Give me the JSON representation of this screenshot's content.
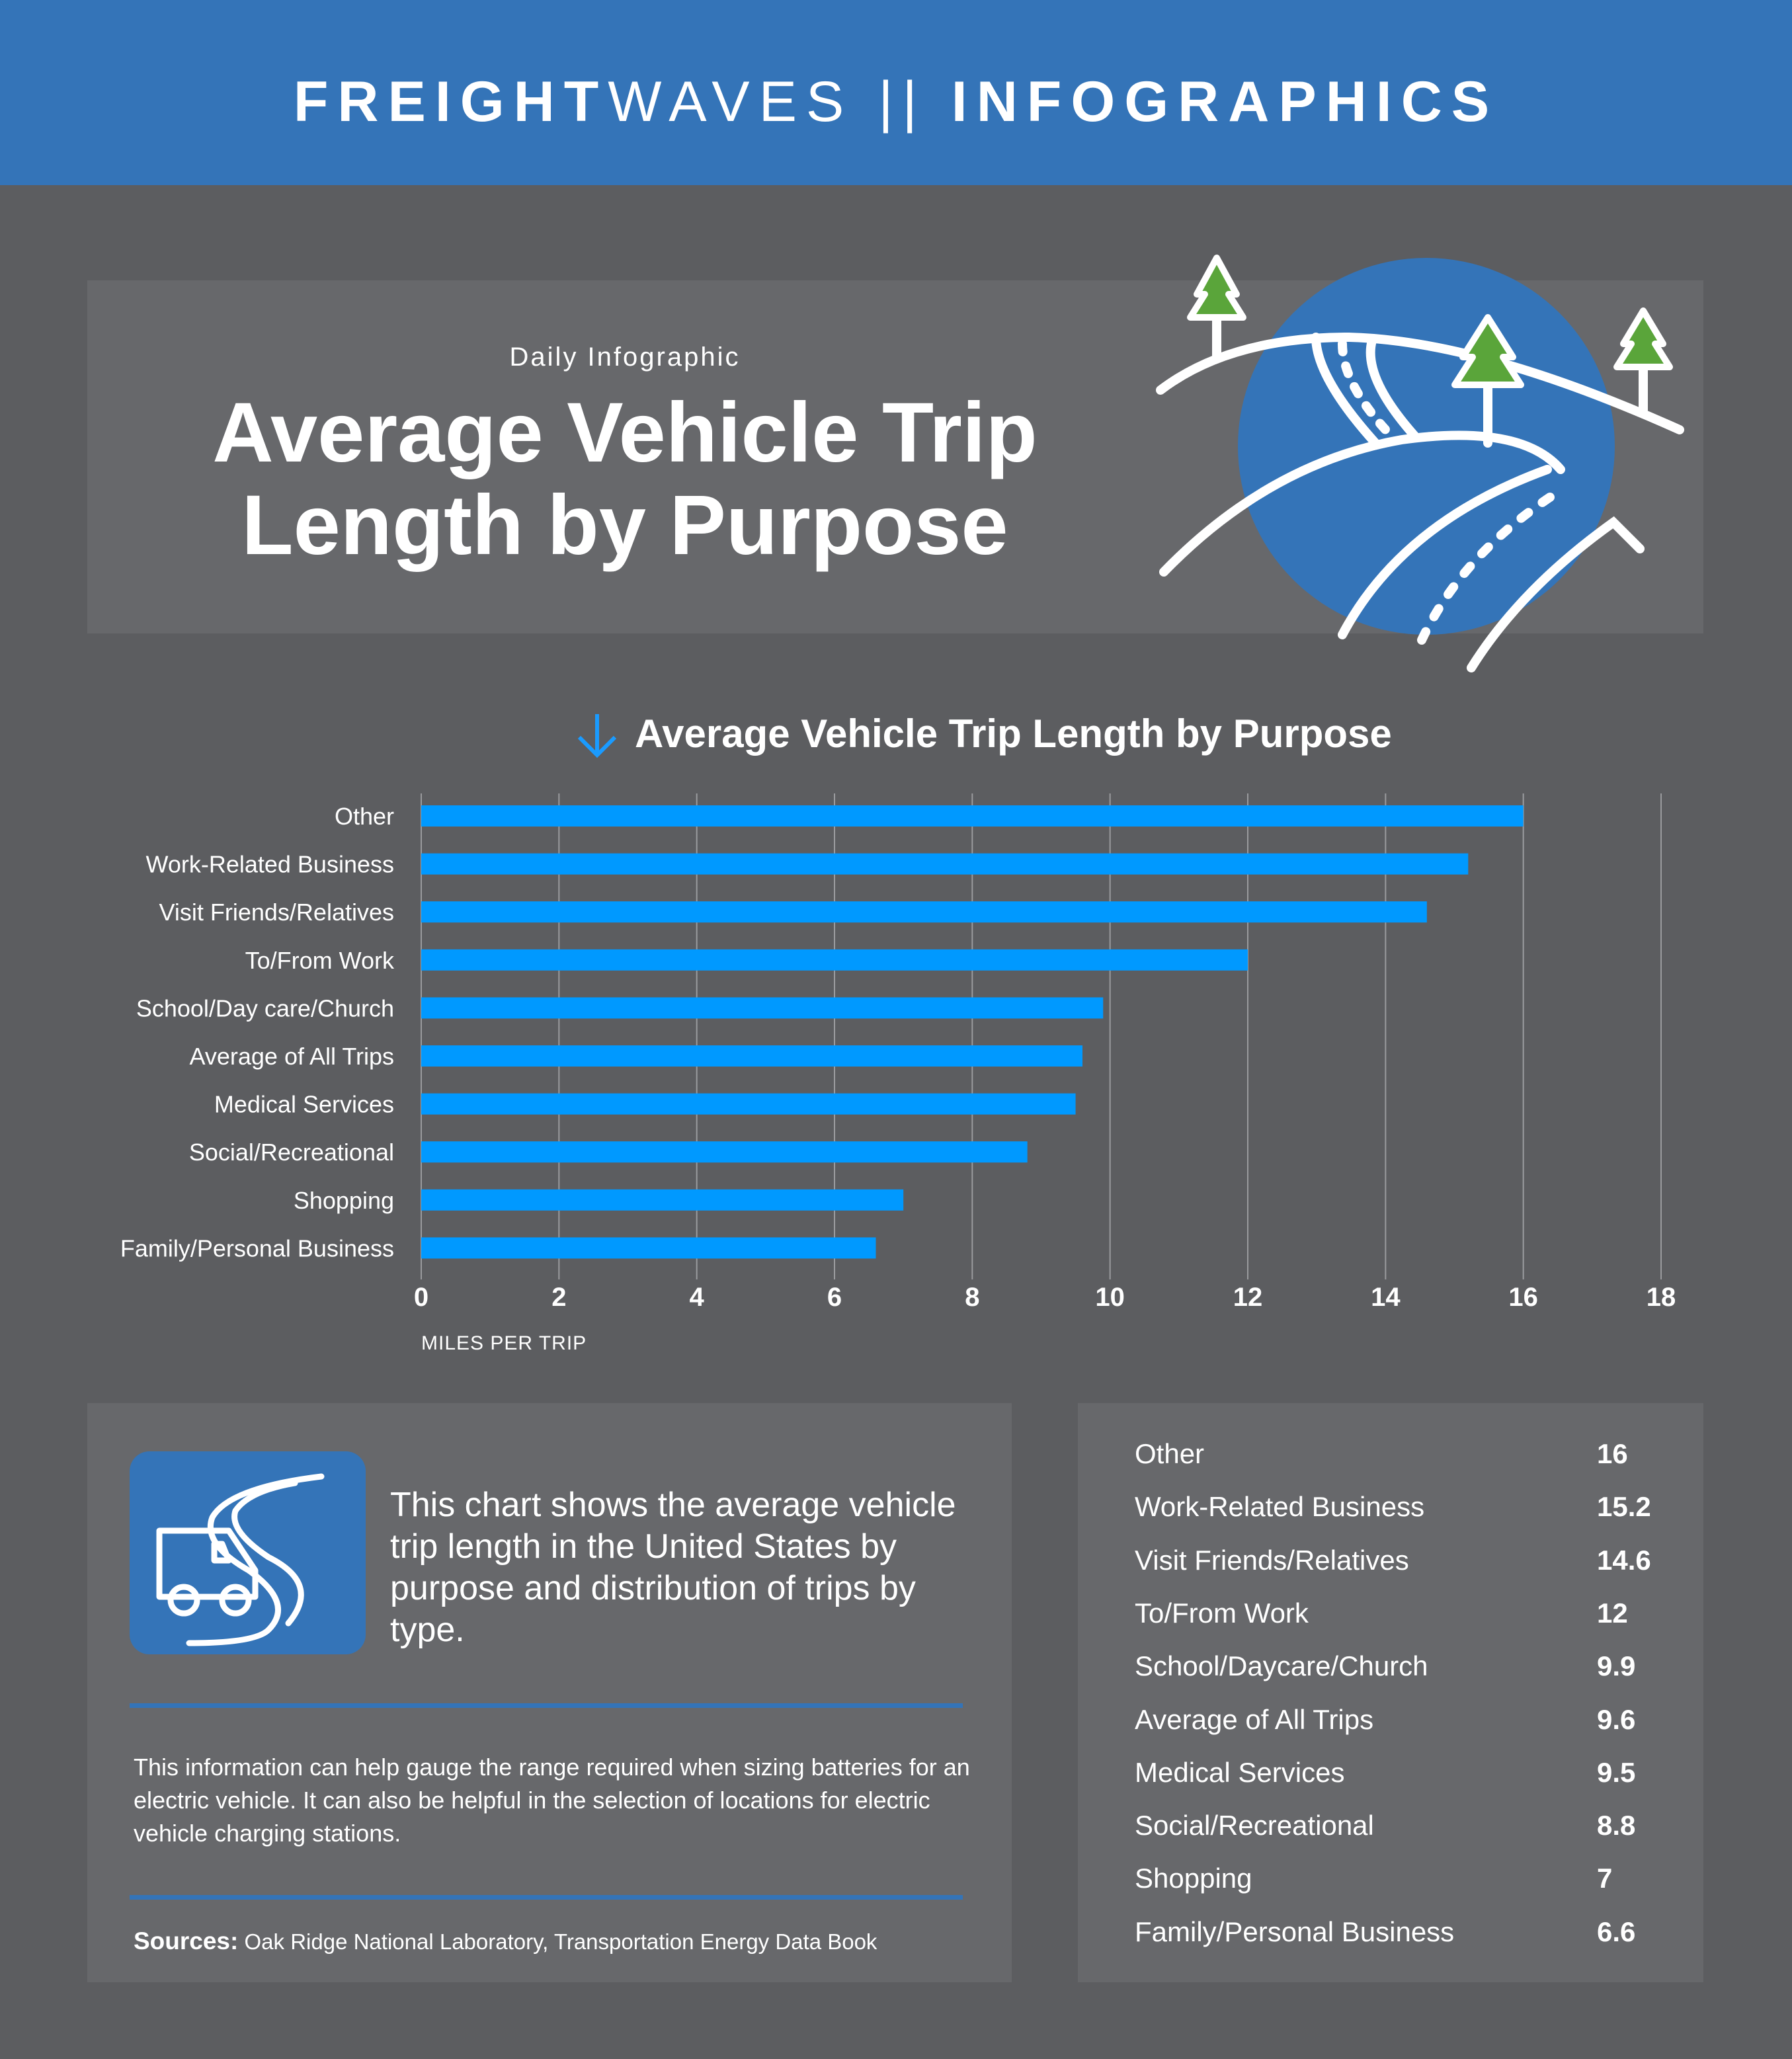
{
  "header": {
    "brand_bold": "FREIGHT",
    "brand_light": "WAVES",
    "separator": "||",
    "section": "INFOGRAPHICS",
    "color": "#3474b8"
  },
  "hero": {
    "kicker": "Daily Infographic",
    "title_line1": "Average Vehicle Trip",
    "title_line2": "Length by Purpose"
  },
  "chart_data": {
    "type": "bar",
    "orientation": "horizontal",
    "title": "Average Vehicle Trip Length by Purpose",
    "categories": [
      "Other",
      "Work-Related Business",
      "Visit Friends/Relatives",
      "To/From Work",
      "School/Day care/Church",
      "Average of All Trips",
      "Medical Services",
      "Social/Recreational",
      "Shopping",
      "Family/Personal Business"
    ],
    "values": [
      16,
      15.2,
      14.6,
      12,
      9.9,
      9.6,
      9.5,
      8.8,
      7,
      6.6
    ],
    "xlabel": "MILES PER TRIP",
    "ylabel": "",
    "xlim": [
      0,
      18
    ],
    "ticks": [
      "0",
      "2",
      "4",
      "6",
      "8",
      "10",
      "12",
      "14",
      "16",
      "18"
    ],
    "grid": true,
    "bar_color": "#0099ff"
  },
  "info": {
    "lead": "This chart shows the average vehicle trip length in the United States by purpose and distribution of trips by type.",
    "paragraph": "This information can help gauge the range required when sizing batteries for an electric vehicle. It can also be helpful in the selection of locations for electric vehicle charging stations.",
    "sources_label": "Sources:",
    "sources_text": "Oak Ridge National Laboratory, Transportation Energy Data Book"
  },
  "table": {
    "rows": [
      {
        "label": "Other",
        "value": "16"
      },
      {
        "label": "Work-Related Business",
        "value": "15.2"
      },
      {
        "label": "Visit Friends/Relatives",
        "value": "14.6"
      },
      {
        "label": "To/From Work",
        "value": "12"
      },
      {
        "label": "School/Daycare/Church",
        "value": "9.9"
      },
      {
        "label": "Average of All Trips",
        "value": "9.6"
      },
      {
        "label": "Medical Services",
        "value": "9.5"
      },
      {
        "label": "Social/Recreational",
        "value": "8.8"
      },
      {
        "label": "Shopping",
        "value": "7"
      },
      {
        "label": "Family/Personal Business",
        "value": "6.6"
      }
    ]
  }
}
